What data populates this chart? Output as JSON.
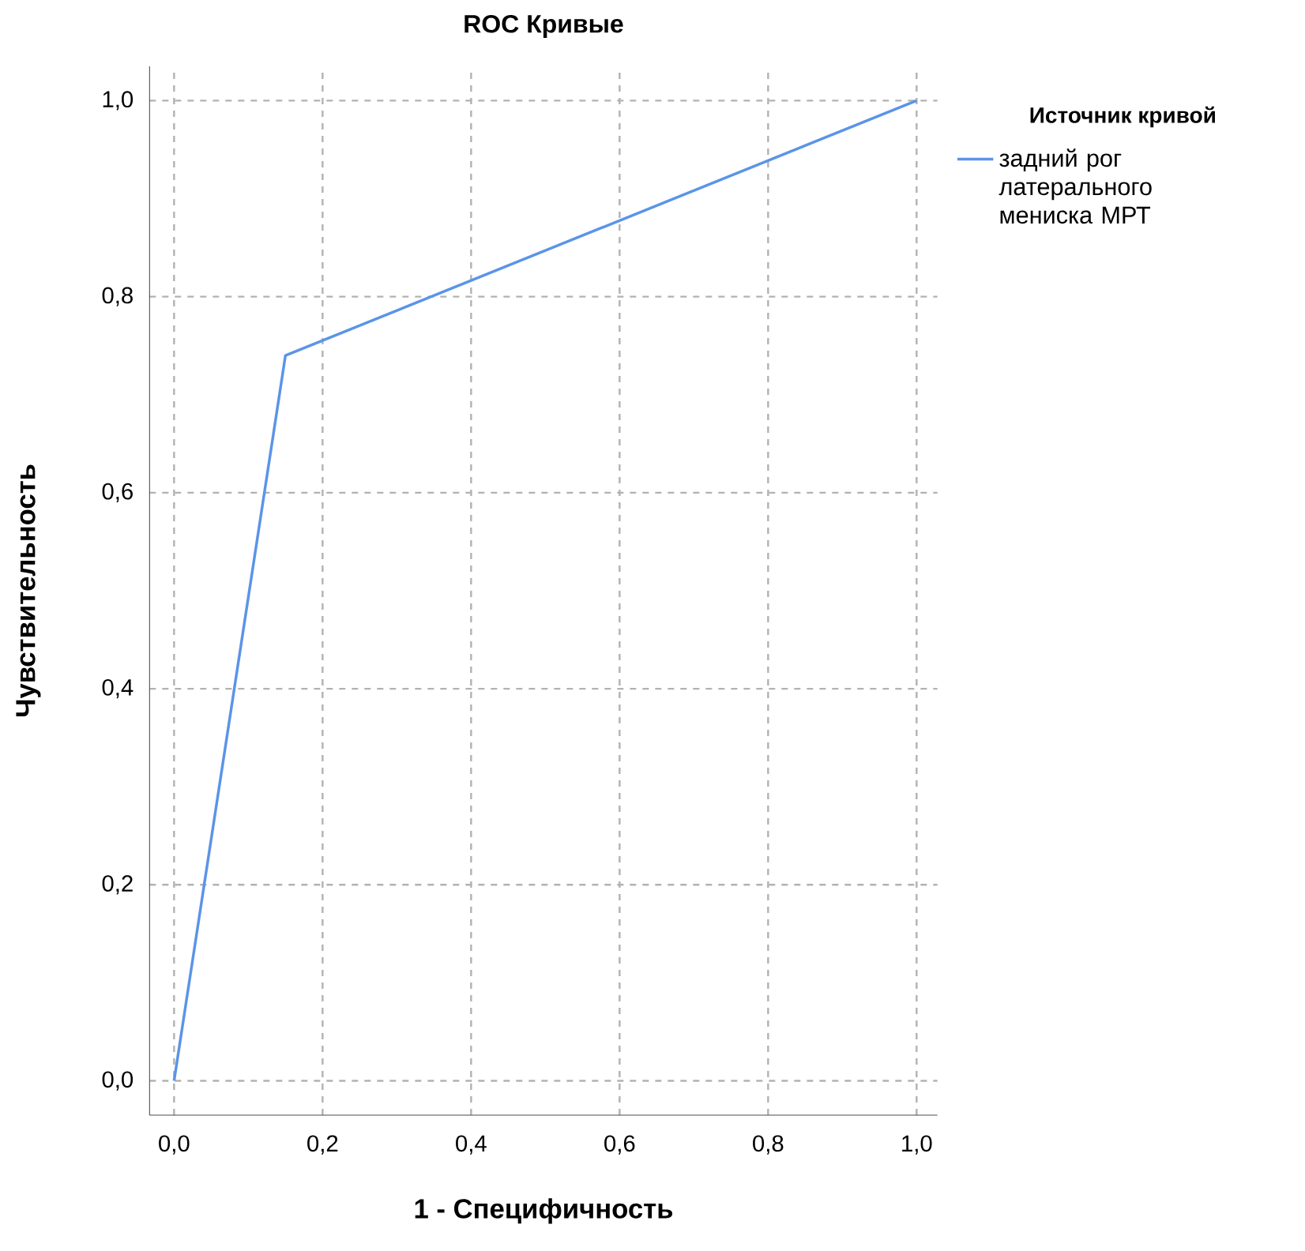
{
  "chart_data": {
    "type": "line",
    "title": "ROC Кривые",
    "xlabel": "1 - Специфичность",
    "ylabel": "Чувствительность",
    "legend_title": "Источник кривой",
    "x": [
      0,
      0.15,
      1
    ],
    "series": [
      {
        "name": "задний рог латерального мениска МРТ",
        "color": "#5b94e8",
        "values": [
          0,
          0.74,
          1
        ]
      }
    ],
    "xlim": [
      -0.033,
      1.028
    ],
    "ylim": [
      -0.035,
      1.035
    ],
    "xticks": [
      {
        "value": 0,
        "label": "0,0"
      },
      {
        "value": 0.2,
        "label": "0,2"
      },
      {
        "value": 0.4,
        "label": "0,4"
      },
      {
        "value": 0.6,
        "label": "0,6"
      },
      {
        "value": 0.8,
        "label": "0,8"
      },
      {
        "value": 1,
        "label": "1,0"
      }
    ],
    "yticks": [
      {
        "value": 0,
        "label": "0,0"
      },
      {
        "value": 0.2,
        "label": "0,2"
      },
      {
        "value": 0.4,
        "label": "0,4"
      },
      {
        "value": 0.6,
        "label": "0,6"
      },
      {
        "value": 0.8,
        "label": "0,8"
      },
      {
        "value": 1,
        "label": "1,0"
      }
    ],
    "grid": true,
    "legend": "top right",
    "marker": "none",
    "line_style": "solid"
  }
}
